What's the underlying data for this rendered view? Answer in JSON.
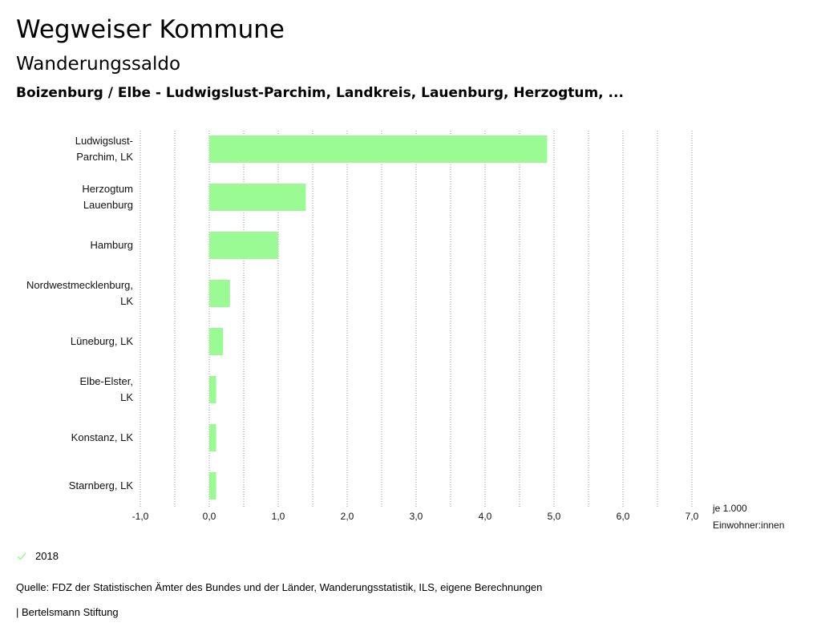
{
  "header": {
    "title": "Wegweiser Kommune",
    "subtitle": "Wanderungssaldo",
    "context": "Boizenburg / Elbe - Ludwigslust-Parchim, Landkreis, Lauenburg, Herzogtum, ..."
  },
  "chart_data": {
    "type": "bar",
    "orientation": "horizontal",
    "categories": [
      [
        "Ludwigslust-",
        "Parchim, LK"
      ],
      [
        "Herzogtum",
        "Lauenburg"
      ],
      [
        "Hamburg"
      ],
      [
        "Nordwestmecklenburg,",
        "LK"
      ],
      [
        "Lüneburg, LK"
      ],
      [
        "Elbe-Elster,",
        "LK"
      ],
      [
        "Konstanz, LK"
      ],
      [
        "Starnberg, LK"
      ]
    ],
    "series": [
      {
        "name": "2018",
        "color": "#9afa93",
        "values": [
          4.9,
          1.4,
          1.0,
          0.3,
          0.2,
          0.1,
          0.1,
          0.1
        ]
      }
    ],
    "xlim": [
      -1.0,
      7.0
    ],
    "xticks": [
      -1.0,
      0.0,
      1.0,
      2.0,
      3.0,
      4.0,
      5.0,
      6.0,
      7.0
    ],
    "xtick_labels": [
      "-1,0",
      "0,0",
      "1,0",
      "2,0",
      "3,0",
      "4,0",
      "5,0",
      "6,0",
      "7,0"
    ],
    "gridlines": [
      -1.0,
      -0.5,
      0.0,
      0.5,
      1.0,
      1.5,
      2.0,
      2.5,
      3.0,
      3.5,
      4.0,
      4.5,
      5.0,
      5.5,
      6.0,
      6.5,
      7.0
    ],
    "xlabel": [
      "je 1.000",
      "Einwohner:innen"
    ],
    "grid": true
  },
  "legend": {
    "label": "2018",
    "color": "#9afa93"
  },
  "footer": {
    "source": "Quelle: FDZ der Statistischen Ämter des Bundes und der Länder, Wanderungsstatistik, ILS, eigene Berechnungen",
    "credit": "| Bertelsmann Stiftung"
  }
}
